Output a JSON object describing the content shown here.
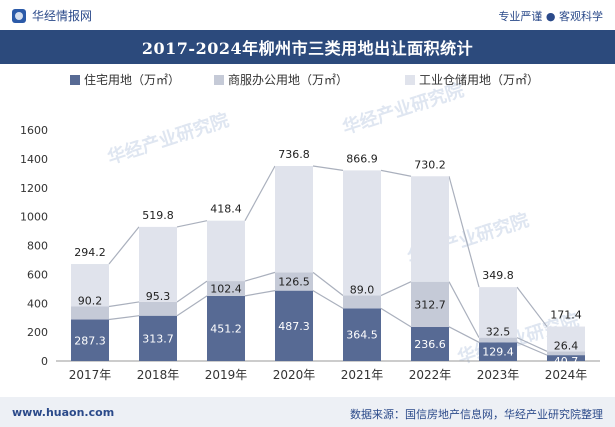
{
  "header": {
    "brand": "华经情报网",
    "tagline": "专业严谨 ● 客观科学"
  },
  "footer": {
    "site": "www.huaon.com",
    "source": "数据来源：国信房地产信息网，华经产业研究院整理"
  },
  "watermark": "华经产业研究院",
  "colors": {
    "residential": "#576a94",
    "commercial": "#c5cad7",
    "industrial": "#e0e3ec",
    "title_bg": "#2c4a7c",
    "connector": "#aab0bd"
  },
  "chart_data": {
    "type": "bar",
    "stacked": true,
    "title": "2017-2024年柳州市三类用地出让面积统计",
    "categories": [
      "2017年",
      "2018年",
      "2019年",
      "2020年",
      "2021年",
      "2022年",
      "2023年",
      "2024年"
    ],
    "series": [
      {
        "name": "住宅用地（万㎡）",
        "values": [
          287.3,
          313.7,
          451.2,
          487.3,
          364.5,
          236.6,
          129.4,
          40.7
        ]
      },
      {
        "name": "商服办公用地（万㎡）",
        "values": [
          90.2,
          95.3,
          102.4,
          126.5,
          89.0,
          312.7,
          32.5,
          26.4
        ]
      },
      {
        "name": "工业仓储用地（万㎡）",
        "values": [
          294.2,
          519.8,
          418.4,
          736.8,
          866.9,
          730.2,
          349.8,
          171.4
        ]
      }
    ],
    "value_labels": [
      [
        "287.3",
        "313.7",
        "451.2",
        "487.3",
        "364.5",
        "236.6",
        "129.4",
        "40.7"
      ],
      [
        "90.2",
        "95.3",
        "102.4",
        "126.5",
        "89.0",
        "312.7",
        "32.5",
        "26.4"
      ],
      [
        "294.2",
        "519.8",
        "418.4",
        "736.8",
        "866.9",
        "730.2",
        "349.8",
        "171.4"
      ]
    ],
    "ylim": [
      0,
      1600
    ],
    "yticks": [
      "0",
      "200",
      "400",
      "600",
      "800",
      "1000",
      "1200",
      "1400",
      "1600"
    ],
    "grid": false,
    "legend_position": "top"
  }
}
